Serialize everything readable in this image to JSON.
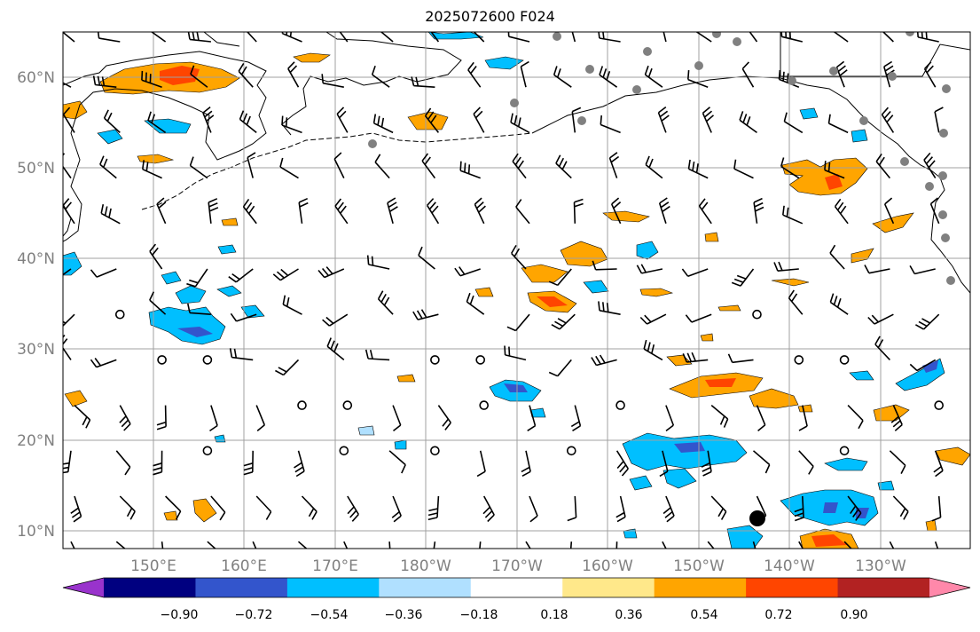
{
  "title": "2025072600 F024",
  "latitude_labels": [
    "60°N",
    "50°N",
    "40°N",
    "30°N",
    "20°N",
    "10°N"
  ],
  "longitude_labels": [
    "150°E",
    "160°E",
    "170°E",
    "180°W",
    "170°W",
    "160°W",
    "150°W",
    "140°W",
    "130°W"
  ],
  "colorbar": {
    "tick_labels": [
      "−0.90",
      "−0.72",
      "−0.54",
      "−0.36",
      "−0.18",
      "0.18",
      "0.36",
      "0.54",
      "0.72",
      "0.90"
    ],
    "colors": [
      "#9933cc",
      "#000080",
      "#3355cc",
      "#00bfff",
      "#b0e0ff",
      "#ffffff",
      "#ffe88a",
      "#ffa500",
      "#ff4500",
      "#b22222",
      "#ff88aa"
    ]
  },
  "colors": {
    "orange": "#ffa500",
    "red_orange": "#ff4500",
    "deep_sky_blue": "#00bfff",
    "blue": "#3355cc",
    "gridline": "#a0a0a0",
    "station_dot": "#808080"
  }
}
